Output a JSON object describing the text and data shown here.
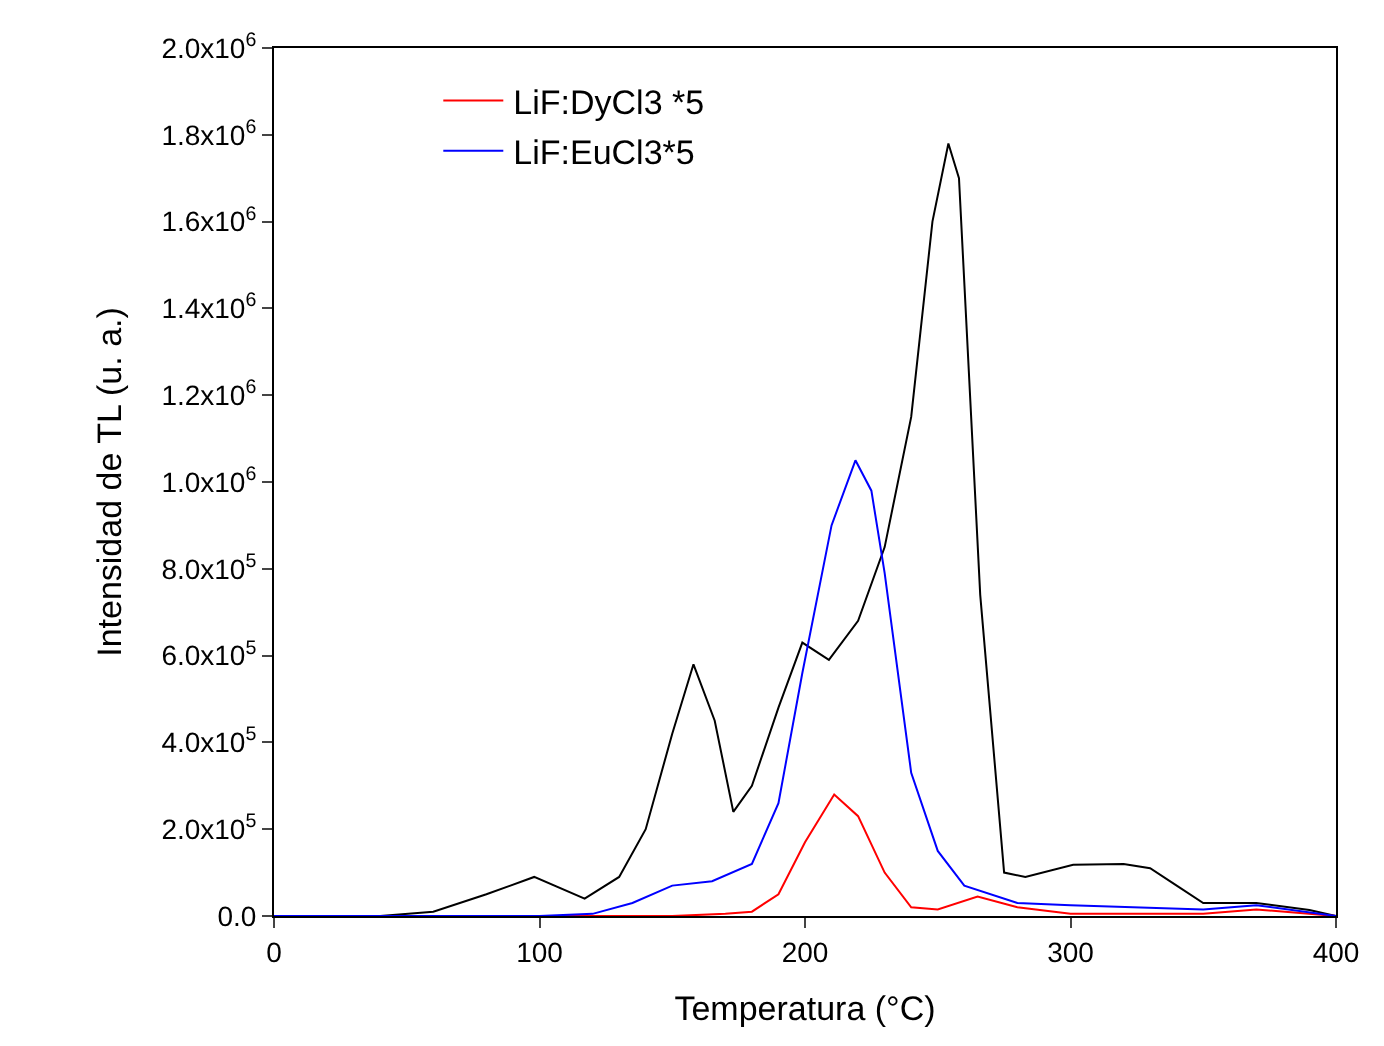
{
  "chart_data": {
    "type": "line",
    "xlabel": "Temperatura (°C)",
    "ylabel": "Intensidad de TL (u. a.)",
    "xlim": [
      0,
      400
    ],
    "xticks": [
      0,
      100,
      200,
      300,
      400
    ],
    "ylim": [
      0,
      2000000
    ],
    "yticks": [
      {
        "value": 0,
        "label": "0.0"
      },
      {
        "value": 200000,
        "label": "2.0x10$^{5}$"
      },
      {
        "value": 400000,
        "label": "4.0x10$^{5}$"
      },
      {
        "value": 600000,
        "label": "6.0x10$^{5}$"
      },
      {
        "value": 800000,
        "label": "8.0x10$^{5}$"
      },
      {
        "value": 1000000,
        "label": "1.0x10$^{6}$"
      },
      {
        "value": 1200000,
        "label": "1.2x10$^{6}$"
      },
      {
        "value": 1400000,
        "label": "1.4x10$^{6}$"
      },
      {
        "value": 1600000,
        "label": "1.6x10$^{6}$"
      },
      {
        "value": 1800000,
        "label": "1.8x10$^{6}$"
      },
      {
        "value": 2000000,
        "label": "2.0x10$^{6}$"
      }
    ],
    "legend": "top left",
    "marker": "none",
    "line_style": "solid",
    "series": [
      {
        "color": "#000000",
        "x": [
          0,
          40,
          60,
          80,
          98,
          117,
          130,
          140,
          150,
          158,
          166,
          173,
          180,
          190,
          199,
          209,
          220,
          230,
          240,
          248,
          254,
          258,
          266,
          275,
          283,
          301,
          320,
          330,
          340,
          350,
          370,
          390,
          400
        ],
        "values": [
          0,
          0,
          10000,
          50000,
          90000,
          40000,
          90000,
          200000,
          420000,
          580000,
          450000,
          240000,
          300000,
          480000,
          630000,
          590000,
          680000,
          850000,
          1150000,
          1600000,
          1780000,
          1700000,
          740000,
          100000,
          90000,
          118000,
          120000,
          110000,
          70000,
          30000,
          30000,
          14000,
          0
        ]
      },
      {
        "name": "LiF:DyCl3 *5",
        "color": "#ff0000",
        "x": [
          0,
          150,
          170,
          180,
          190,
          200,
          211,
          220,
          230,
          240,
          250,
          265,
          280,
          300,
          350,
          370,
          400
        ],
        "values": [
          0,
          0,
          5000,
          10000,
          50000,
          170000,
          280000,
          230000,
          100000,
          20000,
          15000,
          45000,
          20000,
          5000,
          5000,
          15000,
          0
        ]
      },
      {
        "name": "LiF:EuCl3*5",
        "color": "#0000ff",
        "x": [
          0,
          100,
          120,
          135,
          150,
          165,
          180,
          190,
          199,
          210,
          219,
          225,
          230,
          240,
          250,
          260,
          280,
          300,
          350,
          370,
          400
        ],
        "values": [
          0,
          0,
          5000,
          30000,
          70000,
          80000,
          120000,
          260000,
          560000,
          900000,
          1050000,
          980000,
          790000,
          330000,
          150000,
          70000,
          30000,
          25000,
          15000,
          25000,
          0
        ]
      }
    ]
  }
}
